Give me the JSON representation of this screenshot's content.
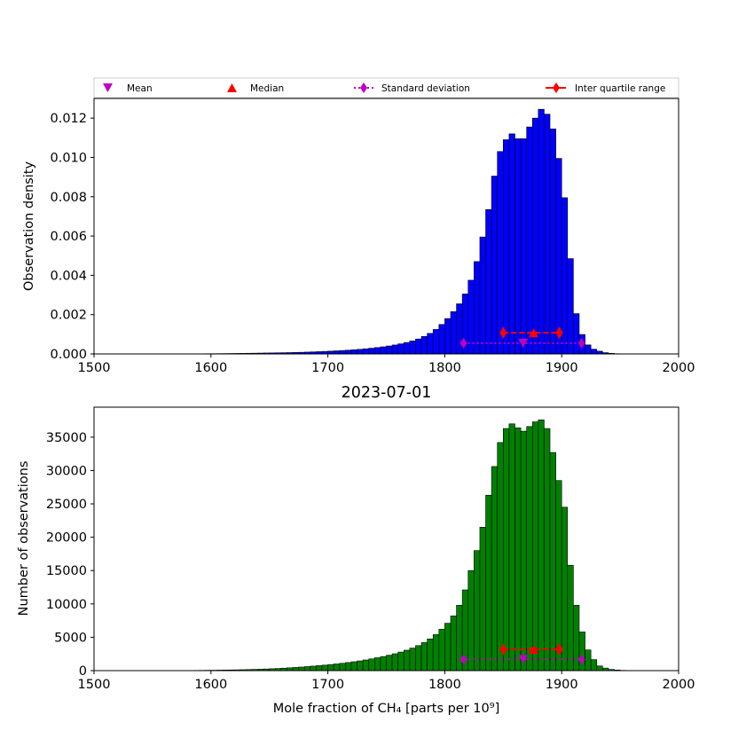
{
  "figure": {
    "title": "2023-07-01",
    "colors": {
      "top_bars": "#0000ff",
      "bottom_bars": "#008000",
      "mean": "#bf00bf",
      "median": "#ff0000",
      "std": "#bf00bf",
      "iqr": "#ff0000",
      "bar_edge": "#000000"
    }
  },
  "legend": {
    "items": [
      {
        "key": "mean",
        "label": "Mean",
        "marker": "triangle-down"
      },
      {
        "key": "median",
        "label": "Median",
        "marker": "triangle-up"
      },
      {
        "key": "std",
        "label": "Standard deviation",
        "marker": "diamond-dotted"
      },
      {
        "key": "iqr",
        "label": "Inter quartile range",
        "marker": "diamond-dashed"
      }
    ]
  },
  "chart_data": [
    {
      "type": "bar",
      "xlabel": "",
      "ylabel": "Observation density",
      "xlim": [
        1500,
        2000
      ],
      "ylim": [
        0,
        0.013
      ],
      "xticks": [
        1500,
        1600,
        1700,
        1800,
        1900,
        2000
      ],
      "yticks": [
        0.0,
        0.002,
        0.004,
        0.006,
        0.008,
        0.01,
        0.012
      ],
      "ytick_labels": [
        "0.000",
        "0.002",
        "0.004",
        "0.006",
        "0.008",
        "0.010",
        "0.012"
      ],
      "bin_start": 1580,
      "bin_width": 5,
      "values": [
        5e-06,
        8e-06,
        1e-05,
        1.2e-05,
        1.4e-05,
        1.6e-05,
        1.9e-05,
        2.2e-05,
        2.6e-05,
        3e-05,
        3.4e-05,
        3.8e-05,
        4.3e-05,
        4.8e-05,
        5.2e-05,
        5.7e-05,
        6.2e-05,
        6.8e-05,
        7.5e-05,
        8.3e-05,
        9.3e-05,
        0.000103,
        0.000115,
        0.000128,
        0.000142,
        0.000157,
        0.000173,
        0.000192,
        0.000212,
        0.000235,
        0.000262,
        0.000292,
        0.000325,
        0.000362,
        0.000405,
        0.000455,
        0.000515,
        0.000582,
        0.00066,
        0.00076,
        0.00089,
        0.001045,
        0.001245,
        0.0015,
        0.0018,
        0.00215,
        0.00255,
        0.00305,
        0.00375,
        0.0047,
        0.00595,
        0.00735,
        0.00905,
        0.0103,
        0.0109,
        0.0112,
        0.01095,
        0.01095,
        0.01155,
        0.012,
        0.01245,
        0.0122,
        0.01145,
        0.00995,
        0.00795,
        0.00485,
        0.00205,
        0.00099,
        0.00046,
        0.00024,
        0.00014,
        6.5e-05,
        3e-05,
        1.2e-05,
        6e-06,
        3e-06,
        1e-06
      ],
      "stats": {
        "mean": {
          "x": 1867,
          "y": 0.00055
        },
        "median": {
          "x": 1876,
          "y": 0.00108
        },
        "std": {
          "x": [
            1816,
            1917
          ],
          "y": 0.00055
        },
        "iqr": {
          "x": [
            1850,
            1898
          ],
          "y": 0.00108
        }
      }
    },
    {
      "type": "bar",
      "xlabel": "Mole fraction of CH₄ [parts per 10⁹]",
      "ylabel": "Number of observations",
      "xlim": [
        1500,
        2000
      ],
      "ylim": [
        0,
        39500
      ],
      "xticks": [
        1500,
        1600,
        1700,
        1800,
        1900,
        2000
      ],
      "yticks": [
        0,
        5000,
        10000,
        15000,
        20000,
        25000,
        30000,
        35000
      ],
      "ytick_labels": [
        "0",
        "5000",
        "10000",
        "15000",
        "20000",
        "25000",
        "30000",
        "35000"
      ],
      "bin_start": 1580,
      "bin_width": 5,
      "values": [
        20,
        30,
        40,
        50,
        60,
        75,
        90,
        105,
        120,
        140,
        160,
        185,
        210,
        245,
        285,
        325,
        370,
        420,
        475,
        535,
        600,
        670,
        745,
        825,
        910,
        1000,
        1100,
        1210,
        1330,
        1460,
        1600,
        1760,
        1930,
        2110,
        2310,
        2530,
        2780,
        3060,
        3380,
        3750,
        4200,
        4750,
        5400,
        6200,
        7100,
        8200,
        9800,
        12100,
        15000,
        18000,
        21500,
        26300,
        30600,
        34200,
        36300,
        37000,
        36400,
        35900,
        36600,
        37300,
        37600,
        36300,
        32700,
        28500,
        24500,
        15800,
        9800,
        5800,
        3100,
        1650,
        700,
        380,
        180,
        90,
        40,
        15,
        5
      ],
      "stats": {
        "mean": {
          "x": 1867,
          "y": 1700
        },
        "median": {
          "x": 1876,
          "y": 3200
        },
        "std": {
          "x": [
            1816,
            1917
          ],
          "y": 1700
        },
        "iqr": {
          "x": [
            1850,
            1898
          ],
          "y": 3200
        }
      }
    }
  ]
}
